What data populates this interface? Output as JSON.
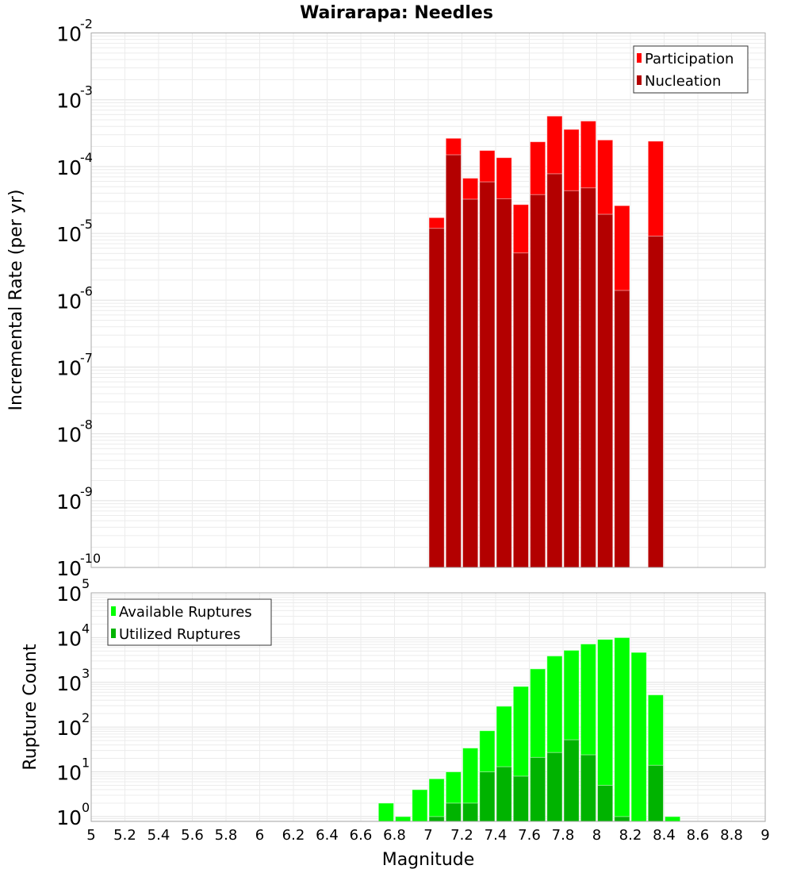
{
  "title": "Wairarapa: Needles",
  "chart_data": [
    {
      "type": "bar",
      "title": "Wairarapa: Needles",
      "xlabel": "Magnitude",
      "ylabel": "Incremental Rate (per yr)",
      "yscale": "log",
      "xlim": [
        5,
        9
      ],
      "ylim": [
        1e-10,
        0.01
      ],
      "y_tick_exponents": [
        -2,
        -3,
        -4,
        -5,
        -6,
        -7,
        -8,
        -9,
        -10
      ],
      "grid": true,
      "legend_position": "top-right",
      "x": [
        7.05,
        7.15,
        7.25,
        7.35,
        7.45,
        7.55,
        7.65,
        7.75,
        7.85,
        7.95,
        8.05,
        8.15,
        8.35
      ],
      "series": [
        {
          "name": "Participation",
          "color": "#ff0000",
          "values": [
            1.72e-05,
            0.000265,
            6.7e-05,
            0.000174,
            0.000136,
            2.7e-05,
            0.000235,
            0.00057,
            0.00036,
            0.00048,
            0.00025,
            2.6e-05,
            0.00024
          ]
        },
        {
          "name": "Nucleation",
          "color": "#b30000",
          "values": [
            1.19e-05,
            0.00015,
            3.25e-05,
            5.9e-05,
            3.3e-05,
            5.1e-06,
            3.8e-05,
            7.8e-05,
            4.35e-05,
            4.8e-05,
            1.93e-05,
            1.4e-06,
            9.1e-06
          ]
        }
      ]
    },
    {
      "type": "bar",
      "xlabel": "Magnitude",
      "ylabel": "Rupture Count",
      "yscale": "log",
      "xlim": [
        5,
        9
      ],
      "ylim": [
        0.78,
        100000.0
      ],
      "y_tick_exponents": [
        5,
        4,
        3,
        2,
        1,
        0
      ],
      "x_ticks": [
        "5",
        "5.2",
        "5.4",
        "5.6",
        "5.8",
        "6",
        "6.2",
        "6.4",
        "6.6",
        "6.8",
        "7",
        "7.2",
        "7.4",
        "7.6",
        "7.8",
        "8",
        "8.2",
        "8.4",
        "8.6",
        "8.8",
        "9"
      ],
      "grid": true,
      "legend_position": "top-left",
      "x": [
        6.75,
        6.85,
        6.95,
        7.05,
        7.15,
        7.25,
        7.35,
        7.45,
        7.55,
        7.65,
        7.75,
        7.85,
        7.95,
        8.05,
        8.15,
        8.25,
        8.35,
        8.45
      ],
      "series": [
        {
          "name": "Available Ruptures",
          "color": "#00ff00",
          "values": [
            2,
            1,
            4,
            7,
            10,
            34,
            83,
            292,
            810,
            2000,
            3880,
            5200,
            7200,
            9100,
            10000,
            4670,
            525,
            1
          ]
        },
        {
          "name": "Utilized Ruptures",
          "color": "#00b300",
          "values": [
            0,
            0,
            0,
            1,
            2,
            2,
            10,
            13,
            8,
            21,
            27,
            52,
            24,
            5,
            1,
            0,
            14,
            0
          ]
        }
      ]
    }
  ]
}
